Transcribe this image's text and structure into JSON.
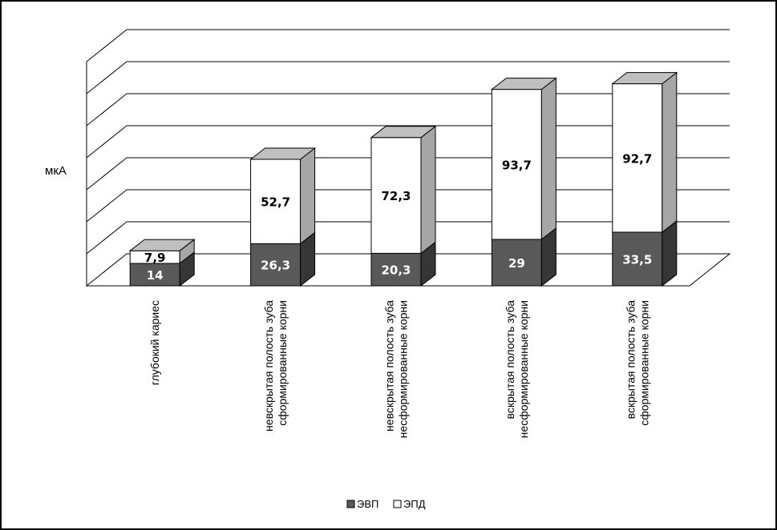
{
  "chart_data": {
    "type": "bar",
    "stacked": true,
    "three_d": true,
    "ylabel": "мкА",
    "ylim": [
      0,
      140
    ],
    "grid": true,
    "legend_position": "bottom",
    "categories": [
      [
        "глубокий кариес"
      ],
      [
        "невскрытая полость зуба",
        "сформированные корни"
      ],
      [
        "невскрытая полость зуба",
        "несформированные корни"
      ],
      [
        "вскрытая полость зуба",
        "несформированные корни"
      ],
      [
        "вскрытая полость зуба",
        "сформированные корни"
      ]
    ],
    "series": [
      {
        "name": "ЭВП",
        "values": [
          14,
          26.3,
          20.3,
          29,
          33.5
        ],
        "labels": [
          "14",
          "26,3",
          "20,3",
          "29",
          "33,5"
        ],
        "color": "#595959",
        "text_color": "#ffffff"
      },
      {
        "name": "ЭПД",
        "values": [
          7.9,
          52.7,
          72.3,
          93.7,
          92.7
        ],
        "labels": [
          "7,9",
          "52,7",
          "72,3",
          "93,7",
          "92,7"
        ],
        "color": "#ffffff",
        "text_color": "#000000"
      }
    ]
  }
}
